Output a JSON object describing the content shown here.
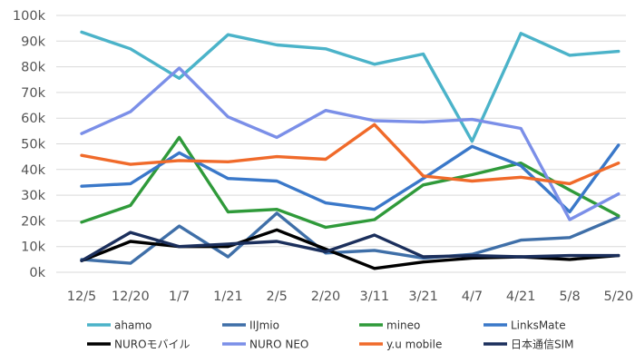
{
  "chart_data": {
    "type": "line",
    "title": "",
    "xlabel": "",
    "ylabel": "",
    "categories": [
      "12/5",
      "12/20",
      "1/7",
      "1/21",
      "2/5",
      "2/20",
      "3/11",
      "3/21",
      "4/7",
      "4/21",
      "5/8",
      "5/20"
    ],
    "ylim": [
      0,
      100
    ],
    "y_ticks": [
      "0k",
      "10k",
      "20k",
      "30k",
      "40k",
      "50k",
      "60k",
      "70k",
      "80k",
      "90k",
      "100k"
    ],
    "grid": true,
    "legend_position": "bottom",
    "series": [
      {
        "name": "ahamo",
        "color": "#4bb3c9",
        "values": [
          93.5,
          87,
          75.5,
          92.5,
          88.5,
          87,
          81,
          85,
          51,
          93,
          84.5,
          86
        ]
      },
      {
        "name": "IIJmio",
        "color": "#3f6fa8",
        "values": [
          5,
          3.5,
          18,
          6,
          23,
          7.5,
          8.5,
          5.5,
          7,
          12.5,
          13.5,
          21.5
        ]
      },
      {
        "name": "mineo",
        "color": "#2f9a3a",
        "values": [
          19.5,
          26,
          52.5,
          23.5,
          24.5,
          17.5,
          20.5,
          34,
          38,
          42.5,
          32,
          22
        ]
      },
      {
        "name": "LinksMate",
        "color": "#3a78c9",
        "values": [
          33.5,
          34.5,
          46.5,
          36.5,
          35.5,
          27,
          24.5,
          36.5,
          49,
          41.5,
          23.5,
          49.5
        ]
      },
      {
        "name": "NUROモバイル",
        "color": "#000000",
        "values": [
          4.5,
          12,
          10,
          10,
          16.5,
          9,
          1.5,
          4,
          5.5,
          6,
          5,
          6.5
        ]
      },
      {
        "name": "NURO NEO",
        "color": "#7b8fe8",
        "values": [
          54,
          62.5,
          79.5,
          60.5,
          52.5,
          63,
          59,
          58.5,
          59.5,
          56,
          20.5,
          30.5
        ]
      },
      {
        "name": "y.u mobile",
        "color": "#f06a2a",
        "values": [
          45.5,
          42,
          43.5,
          43,
          45,
          44,
          57.5,
          37.5,
          35.5,
          37,
          34.5,
          42.5
        ]
      },
      {
        "name": "日本通信SIM",
        "color": "#1b2f5c",
        "values": [
          4.5,
          15.5,
          10,
          11,
          12,
          8,
          14.5,
          6,
          6.5,
          6,
          6.5,
          6.5
        ]
      }
    ]
  }
}
